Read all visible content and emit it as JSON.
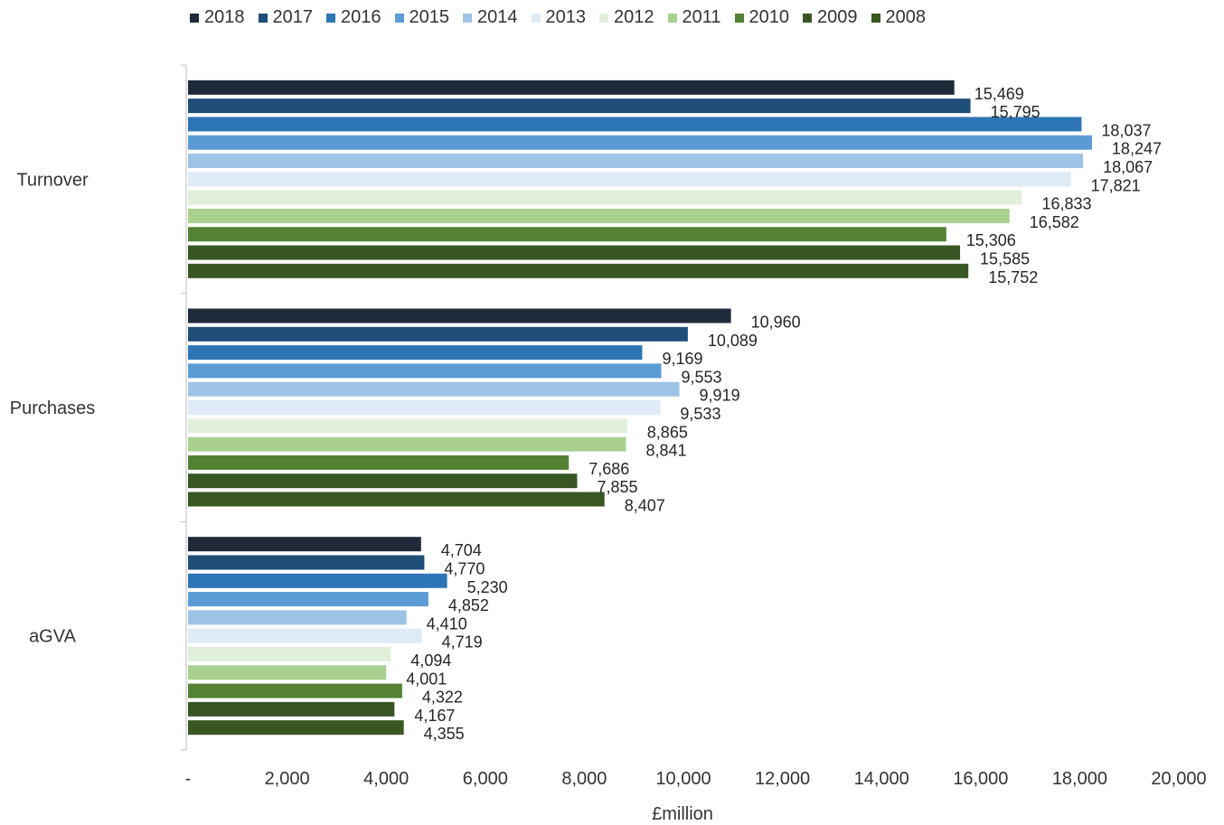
{
  "chart_data": {
    "type": "bar",
    "orientation": "horizontal",
    "xlabel": "£million",
    "xlim": [
      0,
      20000
    ],
    "x_ticks": [
      "-",
      "2,000",
      "4,000",
      "6,000",
      "8,000",
      "10,000",
      "12,000",
      "14,000",
      "16,000",
      "18,000",
      "20,000"
    ],
    "categories": [
      "Turnover",
      "Purchases",
      "aGVA"
    ],
    "legend_position": "top",
    "grid": false,
    "series": [
      {
        "name": "2018",
        "color": "#1f2a3a",
        "values": [
          15469,
          10960,
          4704
        ],
        "labels": [
          "15,469",
          "10,960",
          "4,704"
        ]
      },
      {
        "name": "2017",
        "color": "#1f4e79",
        "values": [
          15795,
          10089,
          4770
        ],
        "labels": [
          "15,795",
          "10,089",
          "4,770"
        ]
      },
      {
        "name": "2016",
        "color": "#2e75b6",
        "values": [
          18037,
          9169,
          5230
        ],
        "labels": [
          "18,037",
          "9,169",
          "5,230"
        ]
      },
      {
        "name": "2015",
        "color": "#5b9bd5",
        "values": [
          18247,
          9553,
          4852
        ],
        "labels": [
          "18,247",
          "9,553",
          "4,852"
        ]
      },
      {
        "name": "2014",
        "color": "#9dc3e6",
        "values": [
          18067,
          9919,
          4410
        ],
        "labels": [
          "18,067",
          "9,919",
          "4,410"
        ]
      },
      {
        "name": "2013",
        "color": "#deebf7",
        "values": [
          17821,
          9533,
          4719
        ],
        "labels": [
          "17,821",
          "9,533",
          "4,719"
        ]
      },
      {
        "name": "2012",
        "color": "#e2efda",
        "values": [
          16833,
          8865,
          4094
        ],
        "labels": [
          "16,833",
          "8,865",
          "4,094"
        ]
      },
      {
        "name": "2011",
        "color": "#a9d08e",
        "values": [
          16582,
          8841,
          4001
        ],
        "labels": [
          "16,582",
          "8,841",
          "4,001"
        ]
      },
      {
        "name": "2010",
        "color": "#548235",
        "values": [
          15306,
          7686,
          4322
        ],
        "labels": [
          "15,306",
          "7,686",
          "4,322"
        ]
      },
      {
        "name": "2009",
        "color": "#375623",
        "values": [
          15585,
          7855,
          4167
        ],
        "labels": [
          "15,585",
          "7,855",
          "4,167"
        ]
      },
      {
        "name": "2008",
        "color": "#385723",
        "values": [
          15752,
          8407,
          4355
        ],
        "labels": [
          "15,752",
          "8,407",
          "4,355"
        ]
      }
    ]
  }
}
